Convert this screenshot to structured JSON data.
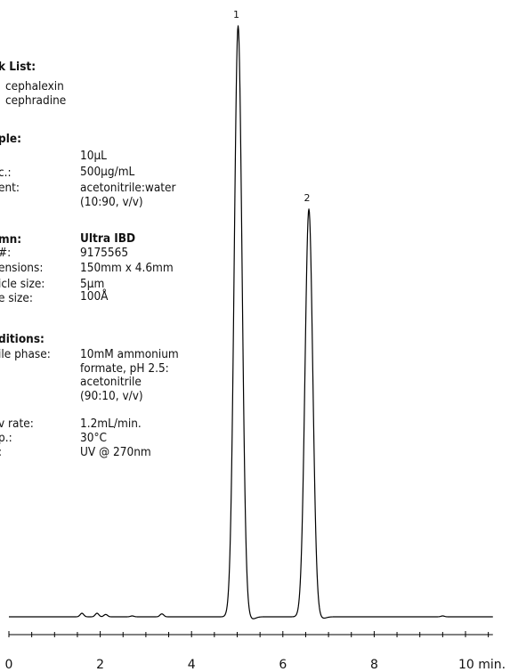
{
  "panel": {
    "peak_list": {
      "header": "k List:",
      "items": [
        "cephalexin",
        "cephradine"
      ]
    },
    "sample": {
      "header": "ple:",
      "labels": [
        "",
        "c.:",
        "ent:"
      ],
      "values": [
        "10µL",
        "500µg/mL",
        "acetonitrile:water\n(10:90, v/v)"
      ]
    },
    "column": {
      "header": "mn:",
      "labels": [
        "#:",
        "ensions:",
        "icle size:",
        "e size:"
      ],
      "values": [
        "Ultra IBD",
        "9175565",
        "150mm x 4.6mm",
        "5µm",
        "100Å"
      ]
    },
    "conditions": {
      "header": "ditions:",
      "labels": [
        "ile phase:",
        "",
        "",
        "",
        "v rate:",
        "p.:",
        ":"
      ],
      "values": [
        "10mM ammonium\nformate, pH 2.5:\nacetonitrile\n(90:10, v/v)",
        "1.2mL/min.",
        "30°C",
        "UV @ 270nm"
      ]
    }
  },
  "chart_data": {
    "type": "line",
    "xlabel": "min.",
    "xlim": [
      0,
      10.6
    ],
    "x_ticks": [
      0,
      2,
      4,
      6,
      8,
      10
    ],
    "x_tick_labels": [
      "0",
      "2",
      "4",
      "6",
      "8",
      "10 min."
    ],
    "line_color": "#000000",
    "peaks": [
      {
        "label": "1",
        "compound": "cephalexin",
        "retention_time": 5.02,
        "height": 1.0
      },
      {
        "label": "2",
        "compound": "cephradine",
        "retention_time": 6.57,
        "height": 0.69
      }
    ],
    "minor_peaks": [
      {
        "retention_time": 1.6,
        "height": 0.006
      },
      {
        "retention_time": 1.93,
        "height": 0.006
      },
      {
        "retention_time": 2.12,
        "height": 0.004
      },
      {
        "retention_time": 2.7,
        "height": 0.0015
      },
      {
        "retention_time": 3.35,
        "height": 0.005
      },
      {
        "retention_time": 9.5,
        "height": 0.0015
      }
    ]
  }
}
